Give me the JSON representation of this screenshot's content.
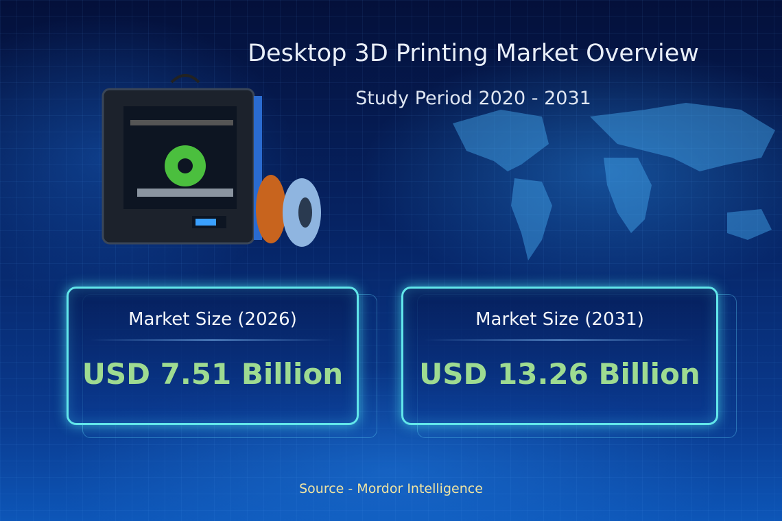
{
  "title": "Desktop 3D Printing Market Overview",
  "subtitle": "Study Period 2020 - 2031",
  "cards": [
    {
      "label": "Market Size (2026)",
      "value": "USD 7.51 Billion"
    },
    {
      "label": "Market Size (2031)",
      "value": "USD 13.26 Billion"
    }
  ],
  "source": "Source  - Mordor Intelligence",
  "colors": {
    "value_green": "#9edb91",
    "card_border": "#62e6ea",
    "source_text": "#f0e4a2"
  }
}
